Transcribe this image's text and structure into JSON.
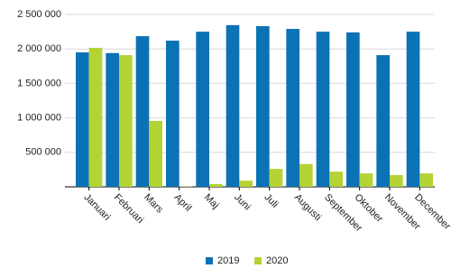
{
  "chart_data": {
    "type": "bar",
    "categories": [
      "Januari",
      "Februari",
      "Mars",
      "April",
      "Maj",
      "Juni",
      "Juli",
      "Augusti",
      "September",
      "Oktober",
      "November",
      "December"
    ],
    "series": [
      {
        "name": "2019",
        "color": "#0b72b5",
        "values": [
          1950000,
          1940000,
          2185000,
          2120000,
          2250000,
          2345000,
          2330000,
          2290000,
          2250000,
          2240000,
          1910000,
          2250000
        ]
      },
      {
        "name": "2020",
        "color": "#b4d335",
        "values": [
          2015000,
          1910000,
          955000,
          5000,
          40000,
          90000,
          260000,
          330000,
          220000,
          195000,
          170000,
          195000
        ]
      }
    ],
    "ylim": [
      0,
      2500000
    ],
    "yticks": [
      {
        "value": 500000,
        "label": "500 000"
      },
      {
        "value": 1000000,
        "label": "1 000 000"
      },
      {
        "value": 1500000,
        "label": "1 500 000"
      },
      {
        "value": 2000000,
        "label": "2 000 000"
      },
      {
        "value": 2500000,
        "label": "2 500 000"
      }
    ],
    "grid": true,
    "legend": "bottom"
  }
}
